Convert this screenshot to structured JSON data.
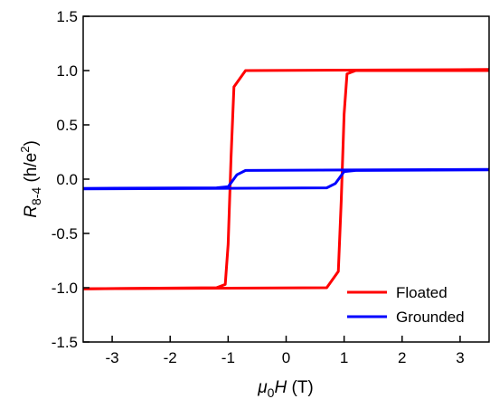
{
  "chart_data": {
    "type": "line",
    "xlabel": {
      "symbol": "μ",
      "sub": "0",
      "var": "H",
      "unit": " (T)"
    },
    "ylabel": {
      "symbol": "R",
      "sub": "8-4",
      "unit_pre": " (h/e",
      "sup": "2",
      "unit_post": ")"
    },
    "xlim": [
      -3.5,
      3.5
    ],
    "ylim": [
      -1.5,
      1.5
    ],
    "xticks": [
      -3,
      -2,
      -1,
      0,
      1,
      2,
      3
    ],
    "xtick_labels": [
      "-3",
      "-2",
      "-1",
      "0",
      "1",
      "2",
      "3"
    ],
    "yticks": [
      -1.5,
      -1.0,
      -0.5,
      0.0,
      0.5,
      1.0,
      1.5
    ],
    "ytick_labels": [
      "-1.5",
      "-1.0",
      "-0.5",
      "0.0",
      "0.5",
      "1.0",
      "1.5"
    ],
    "grid": false,
    "legend_position": "bottom-right",
    "series": [
      {
        "name": "Floated",
        "color": "#ff0000",
        "branches": [
          {
            "direction": "up-sweep",
            "x": [
              -3.5,
              0.7,
              0.9,
              0.95,
              1.0,
              1.05,
              1.2,
              3.5
            ],
            "y": [
              -1.01,
              -1.0,
              -0.85,
              -0.2,
              0.6,
              0.97,
              1.0,
              1.0
            ]
          },
          {
            "direction": "down-sweep",
            "x": [
              3.5,
              -0.7,
              -0.9,
              -0.95,
              -1.0,
              -1.05,
              -1.2,
              -3.5
            ],
            "y": [
              1.01,
              1.0,
              0.85,
              0.2,
              -0.6,
              -0.97,
              -1.0,
              -1.01
            ]
          }
        ]
      },
      {
        "name": "Grounded",
        "color": "#0000ff",
        "branches": [
          {
            "direction": "up-sweep",
            "x": [
              -3.5,
              0.7,
              0.85,
              1.0,
              1.2,
              3.5
            ],
            "y": [
              -0.09,
              -0.08,
              -0.04,
              0.07,
              0.08,
              0.085
            ]
          },
          {
            "direction": "down-sweep",
            "x": [
              3.5,
              -0.7,
              -0.85,
              -1.0,
              -1.2,
              -3.5
            ],
            "y": [
              0.09,
              0.08,
              0.04,
              -0.07,
              -0.08,
              -0.085
            ]
          }
        ]
      }
    ]
  }
}
